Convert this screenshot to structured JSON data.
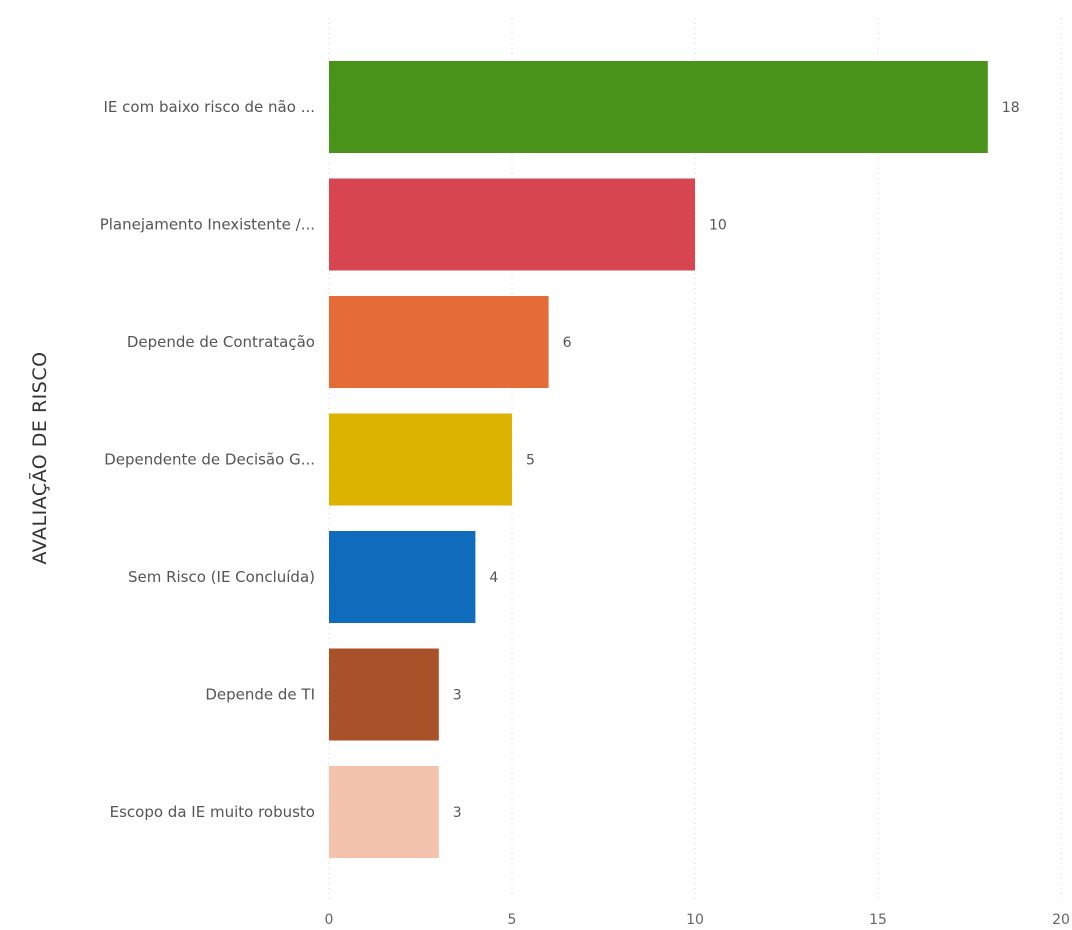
{
  "chart_data": {
    "type": "bar",
    "orientation": "horizontal",
    "xlabel": "",
    "ylabel": "AVALIAÇÃO DE RISCO",
    "xlim": [
      0,
      20
    ],
    "x_ticks": [
      "0",
      "5",
      "10",
      "15",
      "20"
    ],
    "grid": "vertical",
    "legend": "none",
    "categories": [
      "IE com baixo risco de não ...",
      "Planejamento Inexistente /...",
      "Depende de Contratação",
      "Dependente de Decisão G...",
      "Sem Risco (IE Concluída)",
      "Depende de TI",
      "Escopo da IE muito robusto"
    ],
    "values": [
      18,
      10,
      6,
      5,
      4,
      3,
      3
    ],
    "colors": [
      "#4a931b",
      "#d64550",
      "#e66c37",
      "#dbb300",
      "#0f6cbd",
      "#a9522a",
      "#f3c3ae"
    ]
  }
}
